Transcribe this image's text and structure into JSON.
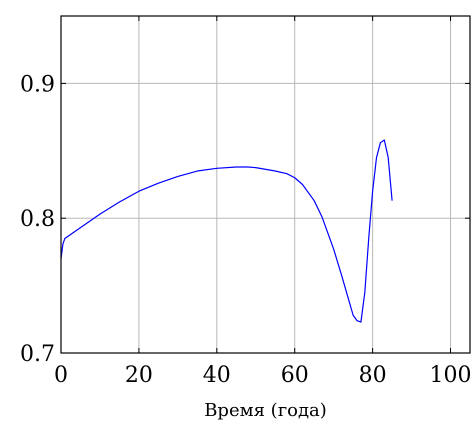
{
  "chart_data": {
    "type": "line",
    "title": "",
    "xlabel": "Время (года)",
    "ylabel": "",
    "xlim": [
      0,
      105
    ],
    "ylim": [
      0.7,
      0.95
    ],
    "grid": true,
    "x_ticks": [
      0,
      20,
      40,
      60,
      80,
      100
    ],
    "x_tick_labels": [
      "0",
      "20",
      "40",
      "60",
      "80",
      "100"
    ],
    "y_ticks": [
      0.7,
      0.8,
      0.9
    ],
    "y_tick_labels": [
      "0.7",
      "0.8",
      "0.9"
    ],
    "series": [
      {
        "color": "#0000ff",
        "x": [
          0,
          0.5,
          1,
          2,
          5,
          10,
          15,
          20,
          25,
          30,
          35,
          40,
          45,
          48,
          50,
          55,
          58,
          60,
          62,
          65,
          67,
          70,
          72,
          74,
          75,
          76,
          77,
          78,
          79,
          80,
          81,
          82,
          83,
          84,
          85
        ],
        "y": [
          0.77,
          0.781,
          0.785,
          0.787,
          0.793,
          0.803,
          0.812,
          0.82,
          0.826,
          0.831,
          0.835,
          0.837,
          0.838,
          0.838,
          0.8375,
          0.835,
          0.833,
          0.83,
          0.825,
          0.813,
          0.801,
          0.777,
          0.758,
          0.738,
          0.728,
          0.724,
          0.723,
          0.745,
          0.785,
          0.82,
          0.845,
          0.856,
          0.858,
          0.845,
          0.813
        ]
      }
    ]
  }
}
